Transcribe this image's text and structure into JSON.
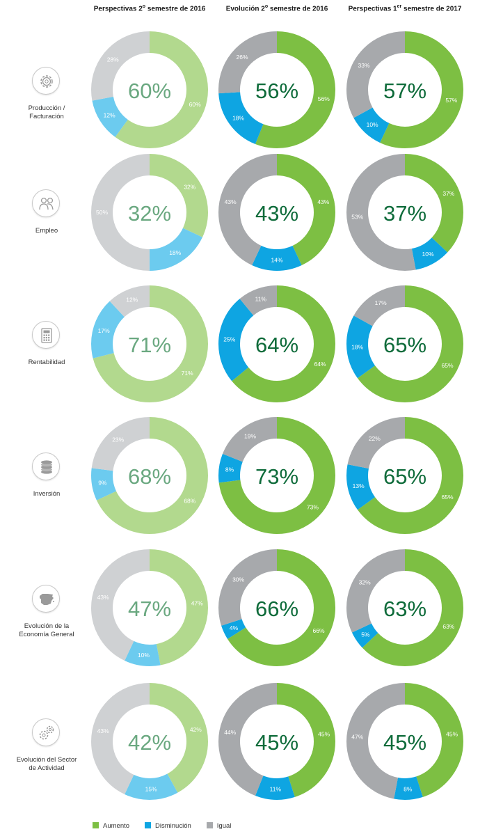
{
  "columns": [
    {
      "title_pre": "Perspectivas 2",
      "title_sup": "o",
      "title_post": " semestre de 2016",
      "light": true
    },
    {
      "title_pre": "Evolución 2",
      "title_sup": "o",
      "title_post": " semestre de 2016",
      "light": false
    },
    {
      "title_pre": "Perspectivas 1",
      "title_sup": "er",
      "title_post": " semestre de 2017",
      "light": false
    }
  ],
  "rows": [
    {
      "label": [
        "Producción /",
        "Facturación"
      ],
      "icon": "gear-icon"
    },
    {
      "label": [
        "Empleo"
      ],
      "icon": "people-icon"
    },
    {
      "label": [
        "Rentabilidad"
      ],
      "icon": "calculator-icon"
    },
    {
      "label": [
        "Inversión"
      ],
      "icon": "coins-icon"
    },
    {
      "label": [
        "Evolución de la",
        "Economía General"
      ],
      "icon": "spain-map-icon"
    },
    {
      "label": [
        "Evolución del Sector",
        "de Actividad"
      ],
      "icon": "gears-icon"
    }
  ],
  "legend": [
    {
      "label": "Aumento",
      "color": "#7dbf43"
    },
    {
      "label": "Disminución",
      "color": "#0ea5e2"
    },
    {
      "label": "Igual",
      "color": "#a7a9ac"
    }
  ],
  "colors": {
    "aumento_dark": "#7dbf43",
    "disminucion_dark": "#0ea5e2",
    "igual_dark": "#a7a9ac",
    "aumento_light": "#b2d98e",
    "disminucion_light": "#6ccbef",
    "igual_light": "#cfd1d3",
    "center_dark": "#0e6b3a",
    "center_light": "#6aa880"
  },
  "chart_data": {
    "type": "donut-grid",
    "series": [
      "Aumento",
      "Disminución",
      "Igual"
    ],
    "values": [
      [
        {
          "aumento": 60,
          "disminucion": 12,
          "igual": 28
        },
        {
          "aumento": 56,
          "disminucion": 18,
          "igual": 26
        },
        {
          "aumento": 57,
          "disminucion": 10,
          "igual": 33
        }
      ],
      [
        {
          "aumento": 32,
          "disminucion": 18,
          "igual": 50
        },
        {
          "aumento": 43,
          "disminucion": 14,
          "igual": 43
        },
        {
          "aumento": 37,
          "disminucion": 10,
          "igual": 53
        }
      ],
      [
        {
          "aumento": 71,
          "disminucion": 17,
          "igual": 12
        },
        {
          "aumento": 64,
          "disminucion": 25,
          "igual": 11
        },
        {
          "aumento": 65,
          "disminucion": 18,
          "igual": 17
        }
      ],
      [
        {
          "aumento": 68,
          "disminucion": 9,
          "igual": 23
        },
        {
          "aumento": 73,
          "disminucion": 8,
          "igual": 19
        },
        {
          "aumento": 65,
          "disminucion": 13,
          "igual": 22
        }
      ],
      [
        {
          "aumento": 47,
          "disminucion": 10,
          "igual": 43
        },
        {
          "aumento": 66,
          "disminucion": 4,
          "igual": 30
        },
        {
          "aumento": 63,
          "disminucion": 5,
          "igual": 32
        }
      ],
      [
        {
          "aumento": 42,
          "disminucion": 15,
          "igual": 43
        },
        {
          "aumento": 45,
          "disminucion": 11,
          "igual": 44
        },
        {
          "aumento": 45,
          "disminucion": 8,
          "igual": 47
        }
      ]
    ]
  }
}
